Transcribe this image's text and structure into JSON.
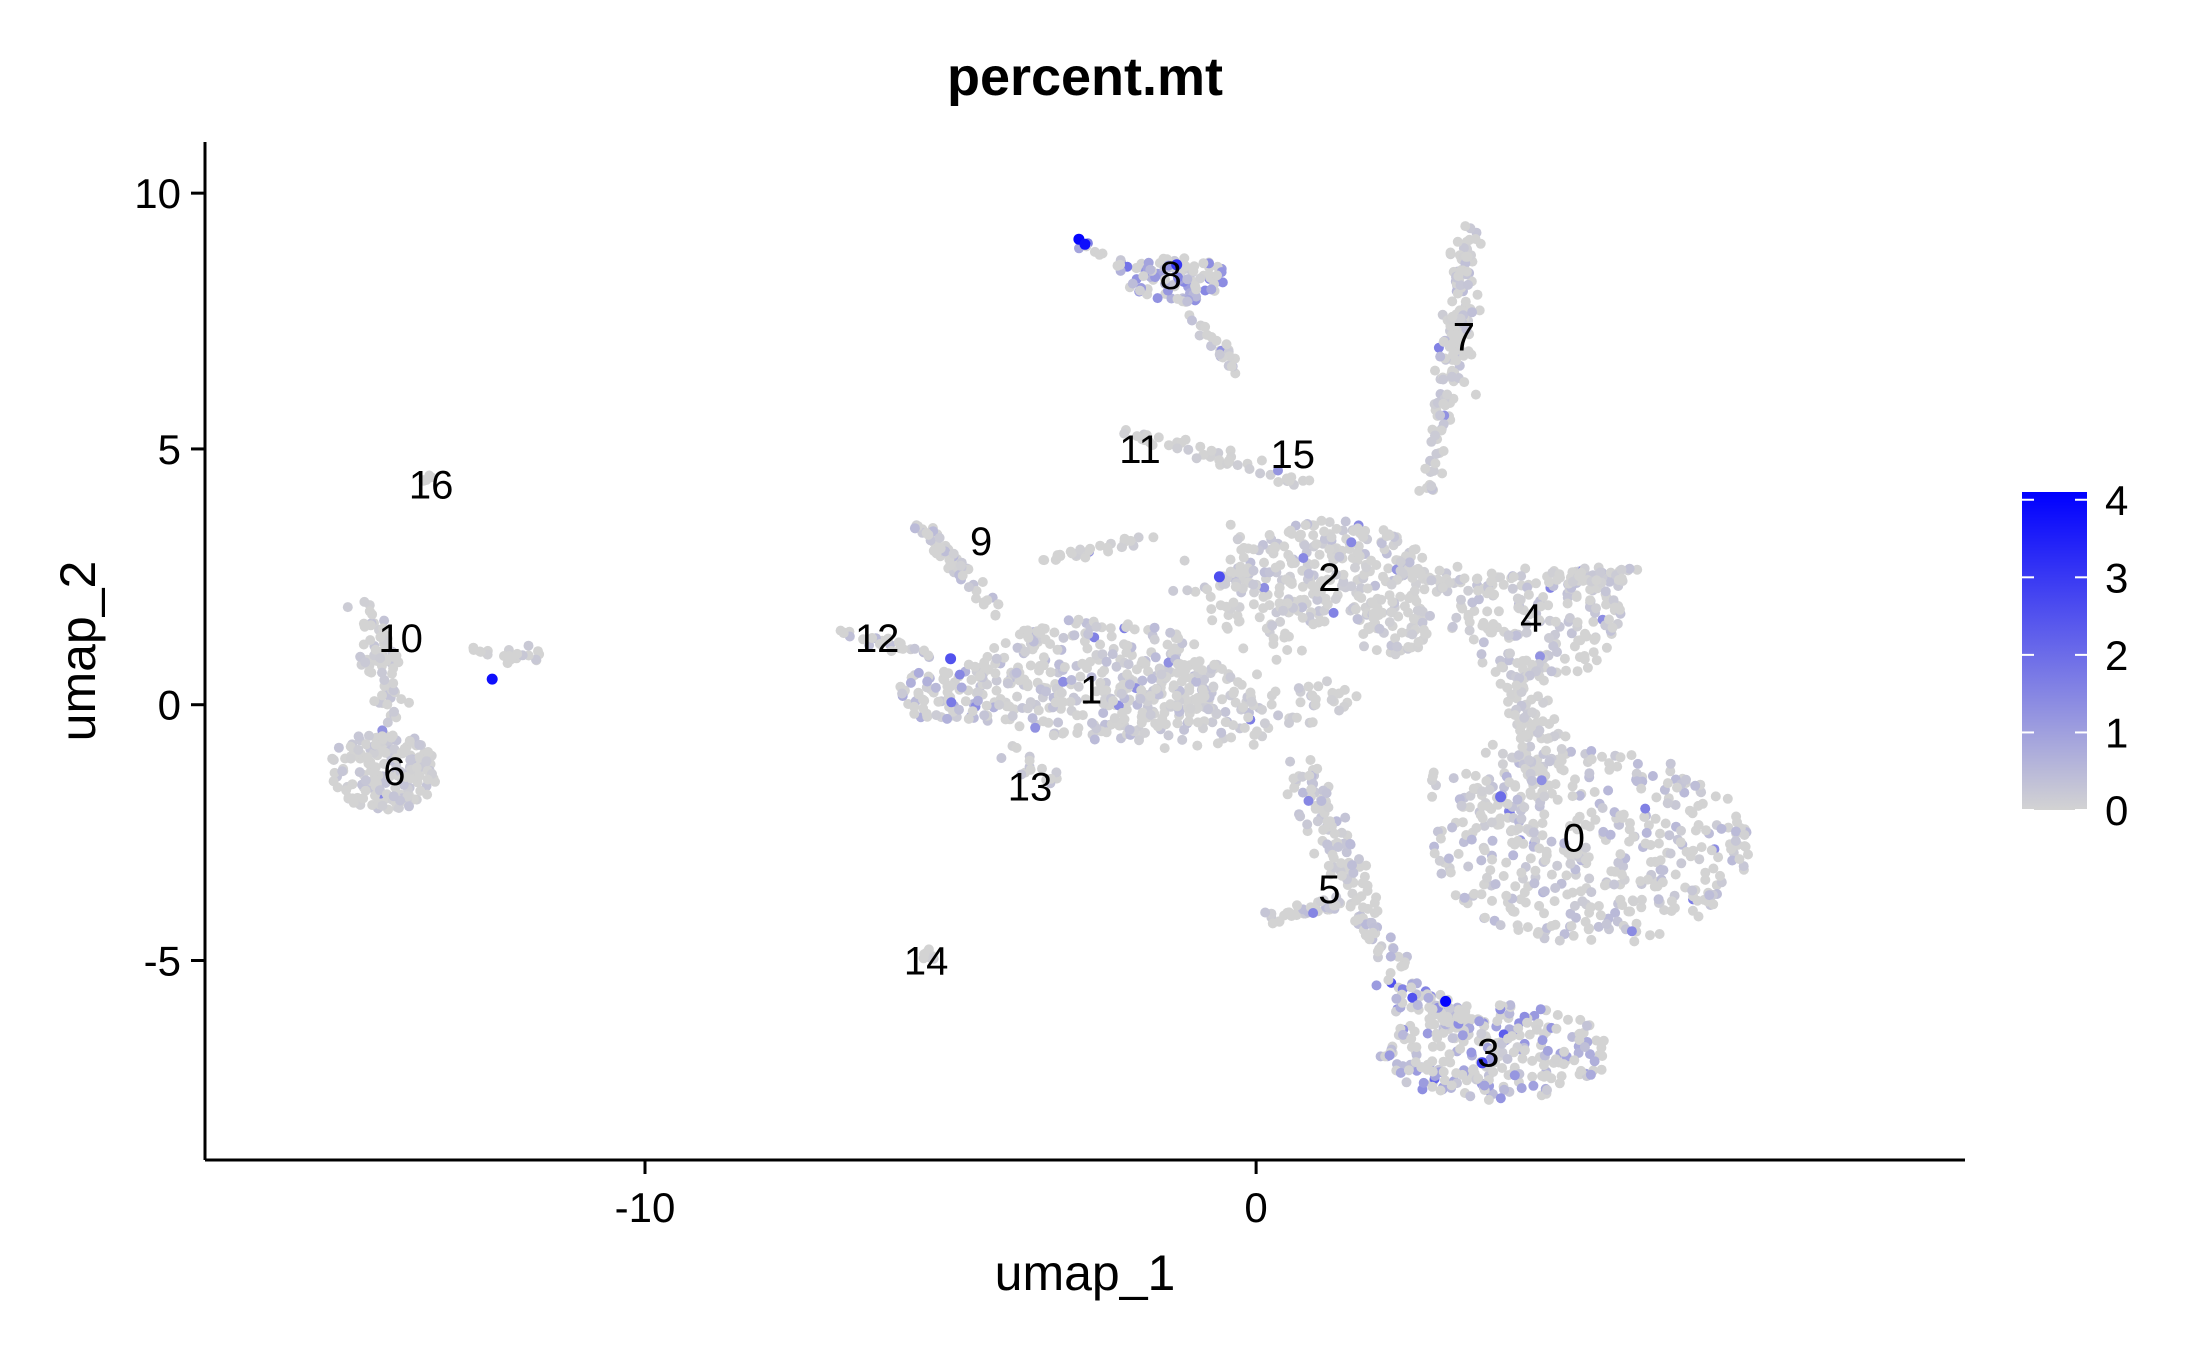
{
  "chart_data": {
    "type": "scatter",
    "title": "percent.mt",
    "xlabel": "umap_1",
    "ylabel": "umap_2",
    "xlim": [
      -17.2,
      11.6
    ],
    "ylim": [
      -8.9,
      11.0
    ],
    "x_ticks": [
      -10,
      0
    ],
    "y_ticks": [
      -5,
      0,
      5,
      10
    ],
    "grid": false,
    "legend": {
      "position": "right",
      "type": "colorbar",
      "min": 0,
      "max": 4.1,
      "ticks": [
        0,
        1,
        2,
        3,
        4
      ]
    },
    "colors": {
      "low": "#d3d3d3",
      "high": "#0000ff",
      "axis": "#000000",
      "label": "#000000"
    },
    "cluster_labels": [
      {
        "label": "0",
        "x": 5.2,
        "y": -2.6
      },
      {
        "label": "1",
        "x": -2.7,
        "y": 0.3
      },
      {
        "label": "2",
        "x": 1.2,
        "y": 2.5
      },
      {
        "label": "3",
        "x": 3.8,
        "y": -6.8
      },
      {
        "label": "4",
        "x": 4.5,
        "y": 1.7
      },
      {
        "label": "5",
        "x": 1.2,
        "y": -3.6
      },
      {
        "label": "6",
        "x": -14.1,
        "y": -1.3
      },
      {
        "label": "7",
        "x": 3.4,
        "y": 7.2
      },
      {
        "label": "8",
        "x": -1.4,
        "y": 8.4
      },
      {
        "label": "9",
        "x": -4.5,
        "y": 3.2
      },
      {
        "label": "10",
        "x": -14.0,
        "y": 1.3
      },
      {
        "label": "11",
        "x": -1.9,
        "y": 5.0
      },
      {
        "label": "12",
        "x": -6.2,
        "y": 1.3
      },
      {
        "label": "13",
        "x": -3.7,
        "y": -1.6
      },
      {
        "label": "14",
        "x": -5.4,
        "y": -5.0
      },
      {
        "label": "15",
        "x": 0.6,
        "y": 4.9
      },
      {
        "label": "16",
        "x": -13.5,
        "y": 4.3
      }
    ],
    "point_regions": [
      {
        "cluster": "0",
        "shape": "ellipse",
        "cx": 5.5,
        "cy": -2.8,
        "rx": 2.6,
        "ry": 1.9,
        "n": 420,
        "mt_mean": 0.35
      },
      {
        "cluster": "4",
        "shape": "ellipse",
        "cx": 4.6,
        "cy": 1.6,
        "rx": 1.4,
        "ry": 1.1,
        "n": 170,
        "mt_mean": 0.25
      },
      {
        "cluster": "4",
        "shape": "line",
        "x0": 4.4,
        "y0": 0.6,
        "x1": 4.6,
        "y1": -1.6,
        "spread": 0.45,
        "n": 110,
        "mt_mean": 0.2
      },
      {
        "cluster": "4",
        "shape": "line",
        "x0": 5.0,
        "y0": 2.5,
        "x1": 6.2,
        "y1": 2.5,
        "spread": 0.2,
        "n": 40,
        "mt_mean": 0.2
      },
      {
        "cluster": "2",
        "shape": "ellipse",
        "cx": 1.2,
        "cy": 2.6,
        "rx": 1.6,
        "ry": 1.0,
        "n": 240,
        "mt_mean": 0.25
      },
      {
        "cluster": "2",
        "shape": "ellipse",
        "cx": 2.3,
        "cy": 1.6,
        "rx": 0.6,
        "ry": 0.7,
        "n": 60,
        "mt_mean": 0.2
      },
      {
        "cluster": "2",
        "shape": "line",
        "x0": 2.4,
        "y0": 2.5,
        "x1": 3.8,
        "y1": 2.3,
        "spread": 0.35,
        "n": 40,
        "mt_mean": 0.2
      },
      {
        "cluster": "1",
        "shape": "ellipse",
        "cx": -2.6,
        "cy": 0.5,
        "rx": 2.0,
        "ry": 1.2,
        "n": 300,
        "mt_mean": 0.3
      },
      {
        "cluster": "1",
        "shape": "ellipse",
        "cx": -1.2,
        "cy": 0.0,
        "rx": 1.2,
        "ry": 0.9,
        "n": 120,
        "mt_mean": 0.3
      },
      {
        "cluster": "1",
        "shape": "ellipse",
        "cx": -4.9,
        "cy": 0.2,
        "rx": 1.0,
        "ry": 0.6,
        "n": 90,
        "mt_mean": 0.5
      },
      {
        "cluster": "1",
        "shape": "line",
        "x0": -3.5,
        "y0": 2.8,
        "x1": -1.7,
        "y1": 3.3,
        "spread": 0.1,
        "n": 30,
        "mt_mean": 0.1
      },
      {
        "cluster": "1",
        "shape": "line",
        "x0": -0.8,
        "y0": 2.6,
        "x1": 0.5,
        "y1": 1.5,
        "spread": 0.8,
        "n": 70,
        "mt_mean": 0.15
      },
      {
        "cluster": "1",
        "shape": "line",
        "x0": -0.2,
        "y0": -0.5,
        "x1": 1.5,
        "y1": 0.5,
        "spread": 0.8,
        "n": 45,
        "mt_mean": 0.15
      },
      {
        "cluster": "9",
        "shape": "line",
        "x0": -5.6,
        "y0": 3.6,
        "x1": -4.2,
        "y1": 1.8,
        "spread": 0.15,
        "n": 60,
        "mt_mean": 0.3
      },
      {
        "cluster": "12",
        "shape": "line",
        "x0": -6.8,
        "y0": 1.4,
        "x1": -5.4,
        "y1": 1.0,
        "spread": 0.12,
        "n": 25,
        "mt_mean": 0.3
      },
      {
        "cluster": "13",
        "shape": "line",
        "x0": -4.1,
        "y0": -0.9,
        "x1": -3.2,
        "y1": -1.5,
        "spread": 0.2,
        "n": 15,
        "mt_mean": 0.2
      },
      {
        "cluster": "14",
        "shape": "ellipse",
        "cx": -5.4,
        "cy": -4.9,
        "rx": 0.15,
        "ry": 0.2,
        "n": 8,
        "mt_mean": 0.1
      },
      {
        "cluster": "5",
        "shape": "line",
        "x0": 0.8,
        "y0": -1.2,
        "x1": 1.8,
        "y1": -4.2,
        "spread": 0.35,
        "n": 110,
        "mt_mean": 0.3
      },
      {
        "cluster": "5",
        "shape": "line",
        "x0": 0.2,
        "y0": -4.2,
        "x1": 1.4,
        "y1": -3.9,
        "spread": 0.12,
        "n": 40,
        "mt_mean": 0.3
      },
      {
        "cluster": "5",
        "shape": "line",
        "x0": 2.8,
        "y0": -1.5,
        "x1": 4.2,
        "y1": -2.2,
        "spread": 0.5,
        "n": 30,
        "mt_mean": 0.2
      },
      {
        "cluster": "3",
        "shape": "ellipse",
        "cx": 3.9,
        "cy": -6.8,
        "rx": 1.9,
        "ry": 0.95,
        "n": 260,
        "mt_mean": 0.9
      },
      {
        "cluster": "3",
        "shape": "line",
        "x0": 2.2,
        "y0": -5.4,
        "x1": 3.4,
        "y1": -6.3,
        "spread": 0.35,
        "n": 60,
        "mt_mean": 1.0
      },
      {
        "cluster": "3",
        "shape": "line",
        "x0": 1.8,
        "y0": -4.3,
        "x1": 2.5,
        "y1": -5.3,
        "spread": 0.25,
        "n": 25,
        "mt_mean": 0.4
      },
      {
        "cluster": "7",
        "shape": "line",
        "x0": 3.5,
        "y0": 9.2,
        "x1": 3.2,
        "y1": 6.2,
        "spread": 0.28,
        "n": 120,
        "mt_mean": 0.3
      },
      {
        "cluster": "7",
        "shape": "line",
        "x0": 3.1,
        "y0": 6.0,
        "x1": 2.8,
        "y1": 4.2,
        "spread": 0.15,
        "n": 40,
        "mt_mean": 0.2
      },
      {
        "cluster": "8",
        "shape": "ellipse",
        "cx": -1.3,
        "cy": 8.3,
        "rx": 0.85,
        "ry": 0.45,
        "n": 90,
        "mt_mean": 1.0
      },
      {
        "cluster": "8",
        "shape": "line",
        "x0": -1.2,
        "y0": 7.9,
        "x1": -0.3,
        "y1": 6.5,
        "spread": 0.12,
        "n": 30,
        "mt_mean": 0.3
      },
      {
        "cluster": "8",
        "shape": "line",
        "x0": -2.9,
        "y0": 9.0,
        "x1": -2.1,
        "y1": 8.5,
        "spread": 0.1,
        "n": 12,
        "mt_mean": 1.2
      },
      {
        "cluster": "11",
        "shape": "line",
        "x0": -2.5,
        "y0": 5.5,
        "x1": 0.8,
        "y1": 4.3,
        "spread": 0.15,
        "n": 45,
        "mt_mean": 0.1
      },
      {
        "cluster": "6",
        "shape": "ellipse",
        "cx": -14.3,
        "cy": -1.3,
        "rx": 0.9,
        "ry": 0.8,
        "n": 180,
        "mt_mean": 0.2
      },
      {
        "cluster": "10",
        "shape": "line",
        "x0": -14.5,
        "y0": 1.9,
        "x1": -14.1,
        "y1": -0.3,
        "spread": 0.3,
        "n": 70,
        "mt_mean": 0.2
      },
      {
        "cluster": "10",
        "shape": "line",
        "x0": -12.8,
        "y0": 1.1,
        "x1": -11.7,
        "y1": 0.9,
        "spread": 0.15,
        "n": 20,
        "mt_mean": 0.3
      },
      {
        "cluster": "16",
        "shape": "ellipse",
        "cx": -13.6,
        "cy": 4.4,
        "rx": 0.12,
        "ry": 0.15,
        "n": 5,
        "mt_mean": 0.0
      }
    ],
    "highlight_points": [
      {
        "x": -2.9,
        "y": 9.1,
        "value": 4.0
      },
      {
        "x": -2.8,
        "y": 9.0,
        "value": 3.8
      },
      {
        "x": -1.3,
        "y": 8.6,
        "value": 3.0
      },
      {
        "x": -12.5,
        "y": 0.5,
        "value": 3.8
      },
      {
        "x": 3.1,
        "y": -5.8,
        "value": 4.0
      },
      {
        "x": 3.7,
        "y": -7.0,
        "value": 2.8
      },
      {
        "x": -5.0,
        "y": 0.9,
        "value": 2.5
      },
      {
        "x": -0.6,
        "y": 2.5,
        "value": 2.6
      },
      {
        "x": 4.0,
        "y": -1.8,
        "value": 2.0
      }
    ]
  }
}
